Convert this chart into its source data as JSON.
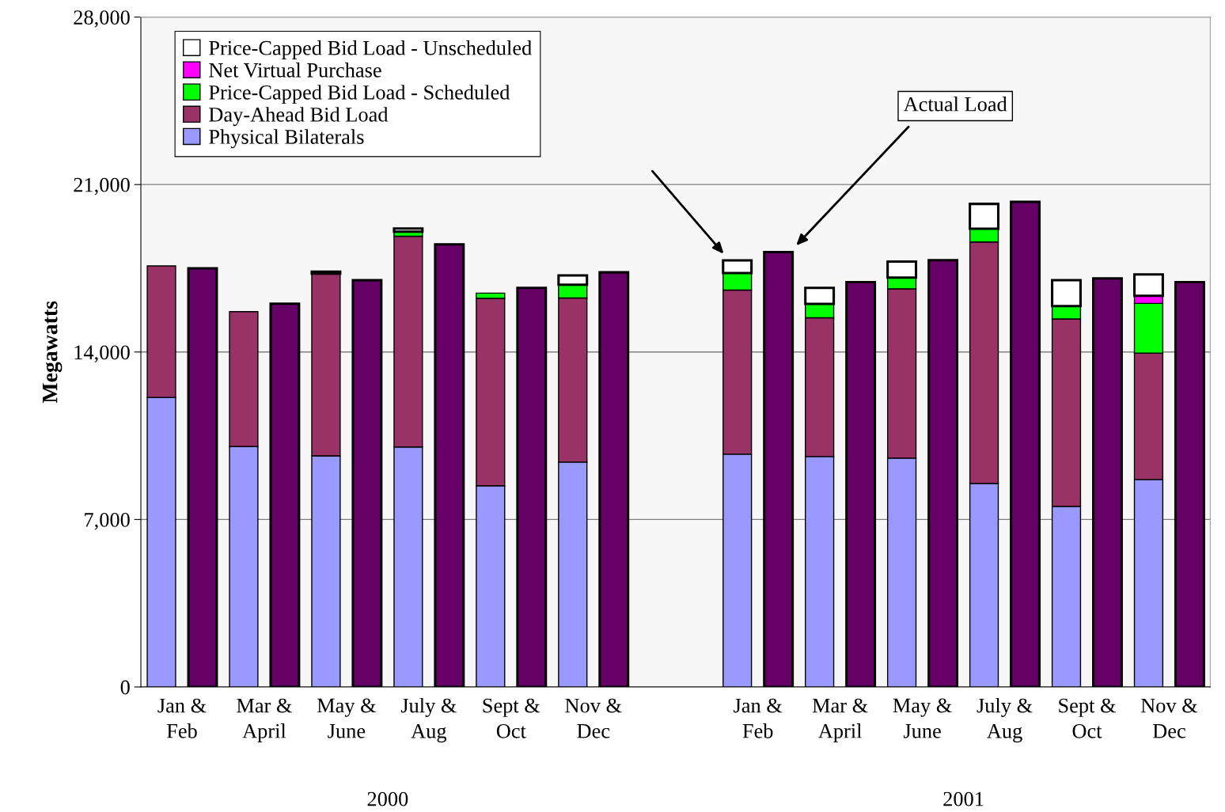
{
  "chart_data": {
    "type": "bar",
    "stacked": true,
    "ylabel": "Megawatts",
    "categories": [
      "Jan &\nFeb",
      null,
      "Mar &\nApril",
      null,
      "May &\nJune",
      null,
      "July &\nAug",
      null,
      "Sept &\nOct",
      null,
      "Nov &\nDec",
      null,
      null,
      null,
      "Jan &\nFeb",
      null,
      "Mar &\nApril",
      null,
      "May &\nJune",
      null,
      "July &\nAug",
      null,
      "Sept &\nOct",
      null,
      "Nov &\nDec",
      null
    ],
    "series": [
      {
        "name": "Physical Bilaterals",
        "color": "#9999ff",
        "values": [
          12100,
          null,
          10050,
          null,
          9660,
          null,
          10030,
          null,
          8410,
          null,
          9400,
          null,
          null,
          null,
          9730,
          null,
          9630,
          null,
          9570,
          null,
          8510,
          null,
          7550,
          null,
          8670,
          null
        ]
      },
      {
        "name": "Day-Ahead Bid Load",
        "color": "#993366",
        "values": [
          5500,
          null,
          5640,
          null,
          7620,
          null,
          8810,
          null,
          7830,
          null,
          6860,
          null,
          null,
          null,
          6860,
          null,
          5800,
          null,
          7070,
          null,
          10090,
          null,
          7830,
          null,
          5280,
          null
        ]
      },
      {
        "name": "Price-Capped Bid Load - Scheduled",
        "color": "#00ff00",
        "values": [
          null,
          null,
          null,
          null,
          null,
          null,
          190,
          null,
          220,
          null,
          550,
          null,
          null,
          null,
          710,
          null,
          580,
          null,
          470,
          null,
          550,
          null,
          540,
          null,
          2080,
          null
        ]
      },
      {
        "name": "Net Virtual Purchase",
        "color": "#ff00ff",
        "values": [
          null,
          null,
          null,
          null,
          null,
          null,
          null,
          null,
          null,
          null,
          null,
          null,
          null,
          null,
          null,
          null,
          null,
          null,
          null,
          null,
          null,
          null,
          null,
          null,
          320,
          null
        ]
      },
      {
        "name": "Price-Capped Bid Load - Unscheduled",
        "color": "#ffffff",
        "values": [
          null,
          null,
          null,
          null,
          80,
          null,
          130,
          null,
          null,
          null,
          390,
          null,
          null,
          null,
          530,
          null,
          670,
          null,
          670,
          null,
          1040,
          null,
          1080,
          null,
          890,
          null
        ]
      },
      {
        "color": "#660066",
        "values": [
          null,
          17500,
          null,
          16020,
          null,
          17000,
          null,
          18500,
          null,
          16680,
          null,
          17330,
          null,
          null,
          null,
          18180,
          null,
          16920,
          null,
          17840,
          null,
          20280,
          null,
          17080,
          null,
          16920
        ]
      }
    ],
    "ylim": [
      0,
      28000
    ],
    "yticks": [
      0,
      {
        "value": 7000,
        "label": "7,000"
      },
      {
        "value": 14000,
        "label": "14,000"
      },
      {
        "value": 21000,
        "label": "21,000"
      },
      {
        "value": 28000,
        "label": "28,000"
      }
    ],
    "grid": "y",
    "legend": "top left",
    "annotations": [
      "2000",
      "2001",
      "Actual Load"
    ]
  }
}
